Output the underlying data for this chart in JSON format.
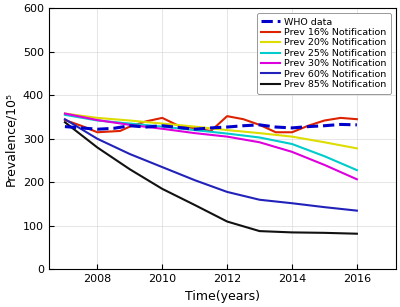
{
  "title": "",
  "xlabel": "Time(years)",
  "ylabel": "Prevalence/10⁵",
  "xlim": [
    2006.5,
    2017.2
  ],
  "ylim": [
    0,
    600
  ],
  "yticks": [
    0,
    100,
    200,
    300,
    400,
    500,
    600
  ],
  "xticks": [
    2008,
    2010,
    2012,
    2014,
    2016
  ],
  "who_data": {
    "x": [
      2007,
      2007.5,
      2008,
      2008.5,
      2009,
      2009.5,
      2010,
      2010.5,
      2011,
      2011.5,
      2012,
      2012.5,
      2013,
      2013.5,
      2014,
      2014.5,
      2015,
      2015.5,
      2016
    ],
    "y": [
      328,
      325,
      322,
      324,
      330,
      327,
      330,
      326,
      322,
      325,
      327,
      330,
      332,
      327,
      325,
      328,
      330,
      333,
      332
    ],
    "color": "#0000CC",
    "linestyle": "--",
    "linewidth": 2.2,
    "label": "WHO data"
  },
  "lines": [
    {
      "label": "Prev 16% Notification",
      "color": "#DD2200",
      "x": [
        2007,
        2007.5,
        2008,
        2008.7,
        2009,
        2009.5,
        2010,
        2010.5,
        2011,
        2011.5,
        2012,
        2012.5,
        2013,
        2013.5,
        2014,
        2014.5,
        2015,
        2015.5,
        2016
      ],
      "y": [
        343,
        330,
        315,
        318,
        328,
        340,
        348,
        330,
        324,
        318,
        352,
        345,
        332,
        315,
        315,
        330,
        342,
        348,
        345
      ],
      "linewidth": 1.5
    },
    {
      "label": "Prev 20% Notification",
      "color": "#DDDD00",
      "x": [
        2007,
        2008,
        2009,
        2010,
        2011,
        2012,
        2013,
        2014,
        2015,
        2016
      ],
      "y": [
        358,
        348,
        342,
        335,
        328,
        320,
        313,
        305,
        292,
        278
      ],
      "linewidth": 1.5
    },
    {
      "label": "Prev 25% Notification",
      "color": "#00CCCC",
      "x": [
        2007,
        2008,
        2009,
        2010,
        2011,
        2012,
        2013,
        2014,
        2015,
        2016
      ],
      "y": [
        355,
        342,
        335,
        328,
        320,
        312,
        303,
        288,
        260,
        228
      ],
      "linewidth": 1.5
    },
    {
      "label": "Prev 30% Notification",
      "color": "#DD00DD",
      "x": [
        2007,
        2008,
        2009,
        2010,
        2011,
        2012,
        2013,
        2014,
        2015,
        2016
      ],
      "y": [
        358,
        343,
        332,
        323,
        313,
        305,
        292,
        270,
        240,
        207
      ],
      "linewidth": 1.5
    },
    {
      "label": "Prev 60% Notification",
      "color": "#2222BB",
      "x": [
        2007,
        2008,
        2009,
        2010,
        2011,
        2012,
        2013,
        2014,
        2015,
        2016
      ],
      "y": [
        345,
        300,
        265,
        235,
        205,
        178,
        160,
        152,
        143,
        135
      ],
      "linewidth": 1.5
    },
    {
      "label": "Prev 85% Notification",
      "color": "#111111",
      "x": [
        2007,
        2008,
        2009,
        2010,
        2011,
        2012,
        2013,
        2014,
        2015,
        2016
      ],
      "y": [
        338,
        280,
        230,
        185,
        148,
        110,
        88,
        85,
        84,
        82
      ],
      "linewidth": 1.5
    }
  ],
  "background_color": "#FFFFFF",
  "legend_fontsize": 6.8,
  "axis_label_fontsize": 9,
  "tick_fontsize": 8
}
